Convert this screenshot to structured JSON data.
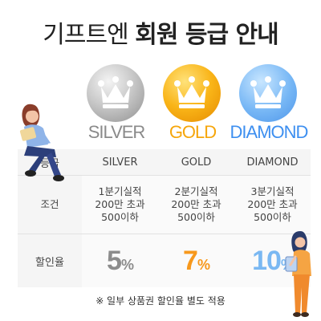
{
  "title": {
    "light": "기프트엔",
    "bold": "회원 등급 안내"
  },
  "tiers": [
    {
      "key": "silver",
      "name": "SILVER",
      "condition_line1": "1분기실적",
      "condition_line2": "200만 초과",
      "condition_line3": "500이하",
      "rate_value": "5",
      "rate_unit": "%",
      "color": "#8a8a8a"
    },
    {
      "key": "gold",
      "name": "GOLD",
      "condition_line1": "2분기실적",
      "condition_line2": "200만 초과",
      "condition_line3": "500이하",
      "rate_value": "7",
      "rate_unit": "%",
      "color": "#f6a60b"
    },
    {
      "key": "diamond",
      "name": "DIAMOND",
      "condition_line1": "3분기실적",
      "condition_line2": "200만 초과",
      "condition_line3": "500이하",
      "rate_value": "10",
      "rate_unit": "%",
      "color": "#3d8ff0"
    }
  ],
  "table": {
    "row_labels": [
      "등급",
      "조건",
      "할인율"
    ]
  },
  "note": "※ 일부 상품권 할인율 별도 적용",
  "icons": {
    "badge": "crown-icon",
    "illustration_left": "woman-reading-illustration",
    "illustration_right": "woman-with-tablet-illustration"
  }
}
